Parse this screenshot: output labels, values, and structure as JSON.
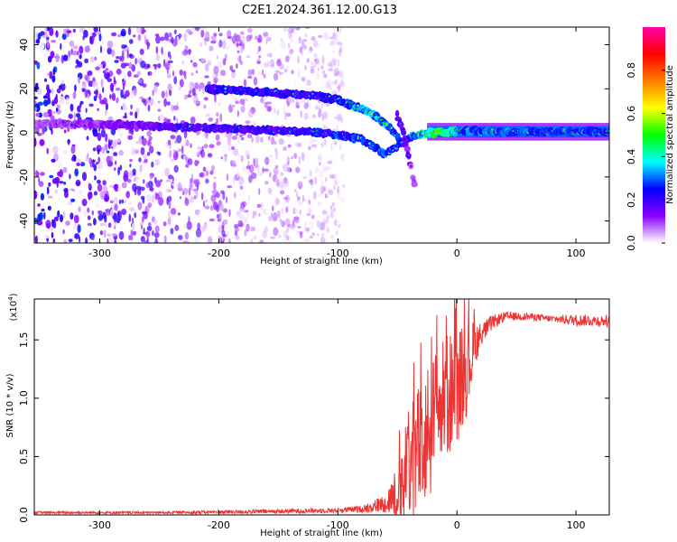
{
  "title": "C2E1.2024.361.12.00.G13",
  "chart_data": [
    {
      "type": "heatmap",
      "xlabel": "Height of straight line (km)",
      "ylabel": "Frequency (Hz)",
      "xlim": [
        -355,
        128
      ],
      "ylim": [
        -50,
        48
      ],
      "x_ticks": [
        -300,
        -200,
        -100,
        0,
        100
      ],
      "y_ticks": [
        -40,
        -20,
        0,
        20,
        40
      ],
      "colorbar": {
        "label": "Normalized spectral amplitude",
        "range": [
          0,
          1
        ],
        "ticks": [
          0.0,
          0.2,
          0.4,
          0.6,
          0.8
        ],
        "tick_labels": [
          "0.0",
          "0.2",
          "0.4",
          "0.6",
          "0.8"
        ],
        "colormap": [
          "#ffffff",
          "#8a00ff",
          "#0000ff",
          "#00ffff",
          "#00ff00",
          "#ffff00",
          "#ff7f00",
          "#ff0000",
          "#ff00aa"
        ]
      },
      "features": [
        {
          "name": "",
          "x": [
            -355,
            -300,
            -250,
            -200,
            -150,
            -110,
            -80,
            -60,
            -40,
            -25,
            -10,
            0,
            10,
            50,
            100,
            128
          ],
          "y": [
            4,
            4,
            3,
            2,
            1,
            0,
            -3,
            -10,
            -2,
            0,
            0,
            1,
            1,
            0.5,
            0.5,
            0.5
          ],
          "amplitude": [
            0.15,
            0.2,
            0.3,
            0.35,
            0.35,
            0.45,
            0.5,
            0.5,
            0.45,
            0.8,
            0.9,
            0.6,
            0.55,
            0.5,
            0.5,
            0.5
          ]
        },
        {
          "name": "",
          "x": [
            -210,
            -180,
            -150,
            -120,
            -100,
            -85,
            -70,
            -55,
            -45
          ],
          "y": [
            20,
            19,
            18,
            17,
            15,
            12,
            8,
            2,
            -5
          ],
          "amplitude": [
            0.35,
            0.4,
            0.4,
            0.35,
            0.45,
            0.55,
            0.6,
            0.55,
            0.4
          ]
        },
        {
          "name": "",
          "x": [
            -50,
            -45,
            -40,
            -35
          ],
          "y": [
            8,
            0,
            -12,
            -25
          ],
          "amplitude": [
            0.3,
            0.25,
            0.2,
            0.15
          ]
        }
      ]
    },
    {
      "type": "line",
      "xlabel": "Height of straight line (km)",
      "ylabel": "SNR (10 * v/v)",
      "y_scale_label": "(x10",
      "y_scale_exponent": "4",
      "xlim": [
        -355,
        128
      ],
      "ylim": [
        0,
        1.85
      ],
      "x_ticks": [
        -300,
        -200,
        -100,
        0,
        100
      ],
      "y_ticks": [
        0.0,
        0.5,
        1.0,
        1.5
      ],
      "y_tick_labels": [
        "0.0",
        "0.5",
        "1.0",
        "1.5"
      ],
      "color": "#ee3333",
      "series": [
        {
          "x": [
            -355,
            -250,
            -150,
            -100,
            -80,
            -60,
            -50,
            -40,
            -30,
            -20,
            -10,
            0,
            10,
            15,
            20,
            30,
            40,
            60,
            80,
            100,
            128
          ],
          "y": [
            0.02,
            0.02,
            0.03,
            0.04,
            0.05,
            0.1,
            0.2,
            0.4,
            0.6,
            0.8,
            1.0,
            1.1,
            1.3,
            1.45,
            1.55,
            1.65,
            1.7,
            1.7,
            1.68,
            1.67,
            1.66
          ],
          "spread": [
            0.01,
            0.01,
            0.02,
            0.02,
            0.03,
            0.08,
            0.25,
            0.5,
            0.6,
            0.6,
            0.55,
            0.5,
            0.4,
            0.2,
            0.1,
            0.06,
            0.04,
            0.03,
            0.03,
            0.05,
            0.05
          ]
        }
      ]
    }
  ]
}
